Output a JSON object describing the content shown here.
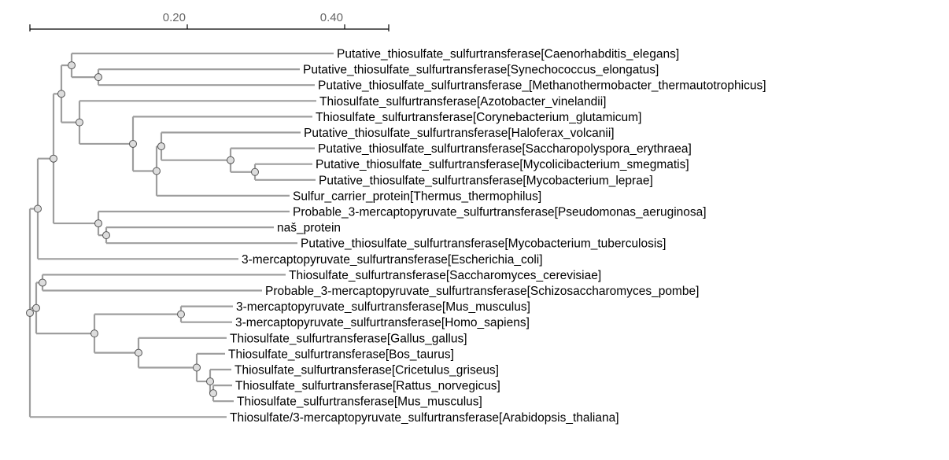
{
  "scale": {
    "ticks": [
      {
        "value": 0.2,
        "label": "0.20"
      },
      {
        "value": 0.4,
        "label": "0.40"
      }
    ],
    "max": 0.456
  },
  "colors": {
    "branch": "#9e9e9e",
    "node_fill": "#dddddd",
    "node_stroke": "#555555",
    "axis": "#000000",
    "tick_label": "#666666"
  },
  "tree": {
    "name": "root",
    "x": 0.0,
    "children": [
      {
        "name": "n-a",
        "x": 0.01,
        "children": [
          {
            "name": "n-c",
            "x": 0.03,
            "children": [
              {
                "name": "n-d",
                "x": 0.04,
                "children": [
                  {
                    "name": "n-f",
                    "x": 0.053,
                    "children": [
                      {
                        "label": "Putative_thiosulfate_sulfurtransferase[Caenorhabditis_elegans]",
                        "x": 0.386
                      },
                      {
                        "name": "n-k",
                        "x": 0.087,
                        "children": [
                          {
                            "label": "Putative_thiosulfate_sulfurtransferase[Synechococcus_elongatus]",
                            "x": 0.343
                          },
                          {
                            "label": "Putative_thiosulfate_sulfurtransferase_[Methanothermobacter_thermautotrophicus]",
                            "x": 0.362
                          }
                        ]
                      }
                    ]
                  },
                  {
                    "name": "n-g",
                    "x": 0.063,
                    "children": [
                      {
                        "label": "Thiosulfate_sulfurtransferase[Azotobacter_vinelandii]",
                        "x": 0.364
                      },
                      {
                        "name": "n-l",
                        "x": 0.131,
                        "children": [
                          {
                            "label": "Thiosulfate_sulfurtransferase[Corynebacterium_glutamicum]",
                            "x": 0.359
                          },
                          {
                            "name": "n-p",
                            "x": 0.161,
                            "children": [
                              {
                                "name": "n-s",
                                "x": 0.167,
                                "children": [
                                  {
                                    "label": "Putative_thiosulfate_sulfurtransferase[Haloferax_volcanii]",
                                    "x": 0.344
                                  },
                                  {
                                    "name": "n-u",
                                    "x": 0.255,
                                    "children": [
                                      {
                                        "label": "Putative_thiosulfate_sulfurtransferase[Saccharopolyspora_erythraea]",
                                        "x": 0.362
                                      },
                                      {
                                        "name": "n-w",
                                        "x": 0.286,
                                        "children": [
                                          {
                                            "label": "Putative_thiosulfate_sulfurtransferase[Mycolicibacterium_smegmatis]",
                                            "x": 0.359
                                          },
                                          {
                                            "label": "Putative_thiosulfate_sulfurtransferase[Mycobacterium_leprae]",
                                            "x": 0.363
                                          }
                                        ]
                                      }
                                    ]
                                  }
                                ]
                              },
                              {
                                "label": "Sulfur_carrier_protein[Thermus_thermophilus]",
                                "x": 0.33
                              }
                            ]
                          }
                        ]
                      }
                    ]
                  }
                ]
              },
              {
                "name": "n-h",
                "x": 0.087,
                "children": [
                  {
                    "label": "Probable_3-mercaptopyruvate_sulfurtransferase[Pseudomonas_aeruginosa]",
                    "x": 0.33
                  },
                  {
                    "name": "n-m",
                    "x": 0.097,
                    "children": [
                      {
                        "label": "naš_protein",
                        "x": 0.31
                      },
                      {
                        "label": "Putative_thiosulfate_sulfurtransferase[Mycobacterium_tuberculosis]",
                        "x": 0.34
                      }
                    ]
                  }
                ]
              }
            ]
          },
          {
            "label": "3-mercaptopyruvate_sulfurtransferase[Escherichia_coli]",
            "x": 0.265
          }
        ]
      },
      {
        "name": "n-b",
        "x": 0.008,
        "children": [
          {
            "name": "n-e",
            "x": 0.016,
            "children": [
              {
                "label": "Thiosulfate_sulfurtransferase[Saccharomyces_cerevisiae]",
                "x": 0.325
              },
              {
                "label": "Probable_3-mercaptopyruvate_sulfurtransferase[Schizosaccharomyces_pombe]",
                "x": 0.295
              }
            ]
          },
          {
            "name": "n-i",
            "x": 0.082,
            "children": [
              {
                "name": "n-n",
                "x": 0.192,
                "children": [
                  {
                    "label": "3-mercaptopyruvate_sulfurtransferase[Mus_musculus]",
                    "x": 0.258
                  },
                  {
                    "label": "3-mercaptopyruvate_sulfurtransferase[Homo_sapiens]",
                    "x": 0.257
                  }
                ]
              },
              {
                "name": "n-o",
                "x": 0.138,
                "children": [
                  {
                    "label": "Thiosulfate_sulfurtransferase[Gallus_gallus]",
                    "x": 0.25
                  },
                  {
                    "name": "n-r",
                    "x": 0.212,
                    "children": [
                      {
                        "label": "Thiosulfate_sulfurtransferase[Bos_taurus]",
                        "x": 0.248
                      },
                      {
                        "name": "n-t",
                        "x": 0.229,
                        "children": [
                          {
                            "label": "Thiosulfate_sulfurtransferase[Cricetulus_griseus]",
                            "x": 0.256
                          },
                          {
                            "name": "n-v",
                            "x": 0.233,
                            "children": [
                              {
                                "label": "Thiosulfate_sulfurtransferase[Rattus_norvegicus]",
                                "x": 0.257
                              },
                              {
                                "label": "Thiosulfate_sulfurtransferase[Mus_musculus]",
                                "x": 0.259
                              }
                            ]
                          }
                        ]
                      }
                    ]
                  }
                ]
              }
            ]
          }
        ]
      },
      {
        "label": "Thiosulfate/3-mercaptopyruvate_sulfurtransferase[Arabidopsis_thaliana]",
        "x": 0.25
      }
    ]
  }
}
